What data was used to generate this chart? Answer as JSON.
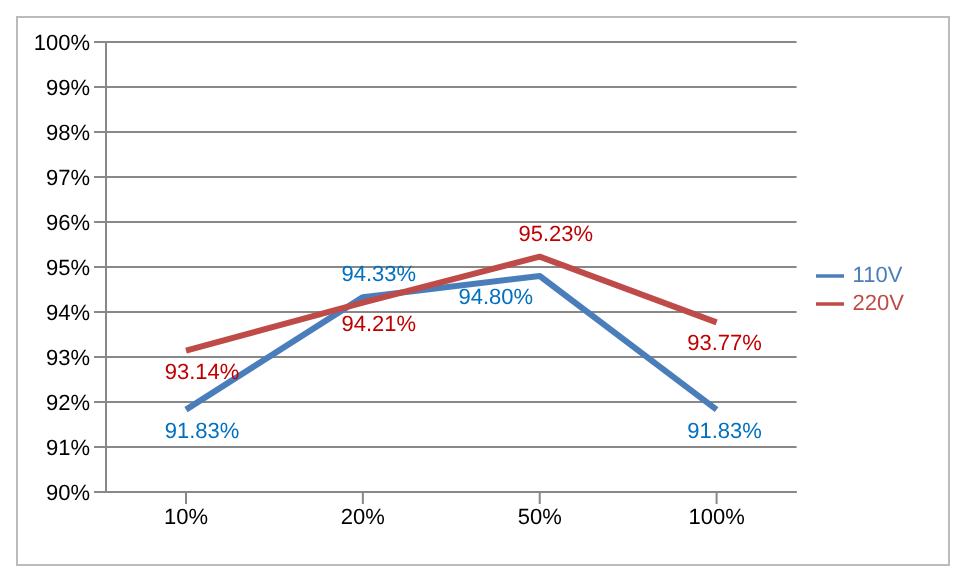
{
  "chart_data": {
    "type": "line",
    "categories": [
      "10%",
      "20%",
      "50%",
      "100%"
    ],
    "series": [
      {
        "name": "110V",
        "color": "#4a7ebb",
        "values": [
          91.83,
          94.33,
          94.8,
          91.83
        ],
        "value_labels": [
          "91.83%",
          "94.33%",
          "94.80%",
          "91.83%"
        ]
      },
      {
        "name": "220V",
        "color": "#be4b48",
        "values": [
          93.14,
          94.21,
          95.23,
          93.77
        ],
        "value_labels": [
          "93.14%",
          "94.21%",
          "95.23%",
          "93.77%"
        ]
      }
    ],
    "ylim": [
      90,
      100
    ],
    "yticks": [
      {
        "value": 90,
        "label": "90%"
      },
      {
        "value": 91,
        "label": "91%"
      },
      {
        "value": 92,
        "label": "92%"
      },
      {
        "value": 93,
        "label": "93%"
      },
      {
        "value": 94,
        "label": "94%"
      },
      {
        "value": 95,
        "label": "95%"
      },
      {
        "value": 96,
        "label": "96%"
      },
      {
        "value": 97,
        "label": "97%"
      },
      {
        "value": 98,
        "label": "98%"
      },
      {
        "value": 99,
        "label": "99%"
      },
      {
        "value": 100,
        "label": "100%"
      }
    ],
    "grid": "y",
    "legend": "right",
    "marker": "none",
    "line_style": "solid"
  }
}
